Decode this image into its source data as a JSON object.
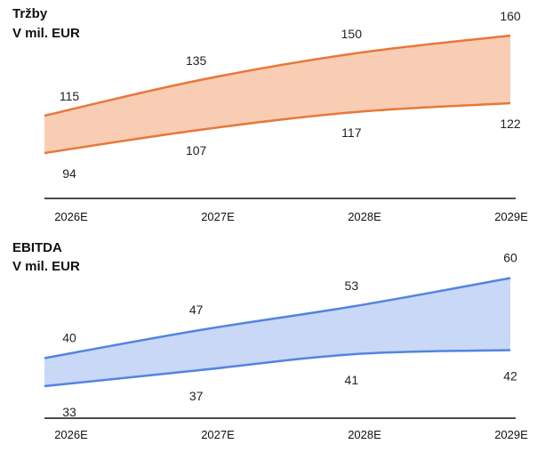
{
  "chart_data": [
    {
      "type": "area",
      "title": "Tržby",
      "subtitle": "V mil. EUR",
      "categories": [
        "2026E",
        "2027E",
        "2028E",
        "2029E"
      ],
      "series": [
        {
          "values": [
            115,
            135,
            150,
            160
          ]
        },
        {
          "values": [
            94,
            107,
            117,
            122
          ]
        }
      ],
      "ylim": [
        70,
        170
      ],
      "colors": {
        "line": "#e8773a",
        "fill": "#f8cdb4"
      },
      "grid": false,
      "legend": "none"
    },
    {
      "type": "area",
      "title": "EBITDA",
      "subtitle": "V mil. EUR",
      "categories": [
        "2026E",
        "2027E",
        "2028E",
        "2029E"
      ],
      "series": [
        {
          "values": [
            40,
            47,
            53,
            60
          ]
        },
        {
          "values": [
            33,
            37,
            41,
            42
          ]
        }
      ],
      "ylim": [
        25,
        65
      ],
      "colors": {
        "line": "#5384e0",
        "fill": "#c8d8f6"
      },
      "grid": false,
      "legend": "none"
    }
  ]
}
